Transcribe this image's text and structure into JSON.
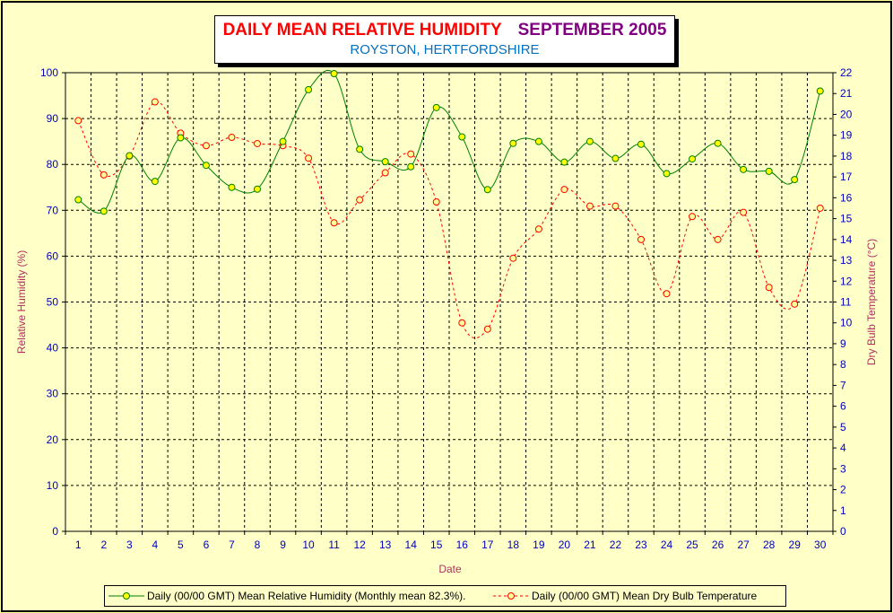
{
  "title": {
    "main": "DAILY MEAN RELATIVE HUMIDITY",
    "date": "SEPTEMBER 2005",
    "subtitle": "ROYSTON, HERTFORDSHIRE"
  },
  "colors": {
    "background": "#ffffc8",
    "axis_text": "#0000c0",
    "axis_label": "#b03060",
    "humidity_line": "#008000",
    "humidity_marker": "#ffff00",
    "temperature_line": "#ff0000",
    "temperature_marker": "#ffff99"
  },
  "chart_data": {
    "type": "line",
    "xlabel": "Date",
    "ylabel": "Relative Humidity (%)",
    "y2label": "Dry Bulb Temperature (°C)",
    "x": [
      1,
      2,
      3,
      4,
      5,
      6,
      7,
      8,
      9,
      10,
      11,
      12,
      13,
      14,
      15,
      16,
      17,
      18,
      19,
      20,
      21,
      22,
      23,
      24,
      25,
      26,
      27,
      28,
      29,
      30
    ],
    "ylim": [
      0,
      100
    ],
    "yticks": [
      0,
      10,
      20,
      30,
      40,
      50,
      60,
      70,
      80,
      90,
      100
    ],
    "y2lim": [
      0,
      22
    ],
    "y2ticks": [
      0,
      1,
      2,
      3,
      4,
      5,
      6,
      7,
      8,
      9,
      10,
      11,
      12,
      13,
      14,
      15,
      16,
      17,
      18,
      19,
      20,
      21,
      22
    ],
    "grid": true,
    "legend_position": "bottom",
    "series": [
      {
        "name": "Daily (00/00 GMT) Mean Relative Humidity (Monthly mean 82.3%).",
        "axis": "left",
        "style": "solid",
        "values": [
          72.3,
          69.8,
          81.9,
          76.3,
          85.8,
          79.8,
          75.0,
          74.6,
          85.0,
          96.3,
          99.8,
          83.3,
          80.6,
          79.5,
          92.4,
          86.0,
          74.5,
          84.6,
          85.0,
          80.5,
          85.0,
          81.3,
          84.4,
          78.0,
          81.2,
          84.6,
          78.9,
          78.5,
          76.7,
          96.0
        ]
      },
      {
        "name": "Daily (00/00 GMT) Mean Dry Bulb Temperature",
        "axis": "right",
        "style": "dashed",
        "values": [
          19.7,
          17.1,
          18.0,
          20.6,
          19.1,
          18.5,
          18.9,
          18.6,
          18.5,
          17.9,
          14.8,
          15.9,
          17.2,
          18.1,
          15.8,
          10.0,
          9.7,
          13.1,
          14.5,
          16.4,
          15.6,
          15.6,
          14.0,
          11.4,
          15.1,
          14.0,
          15.3,
          11.7,
          10.9,
          15.5
        ]
      }
    ]
  }
}
